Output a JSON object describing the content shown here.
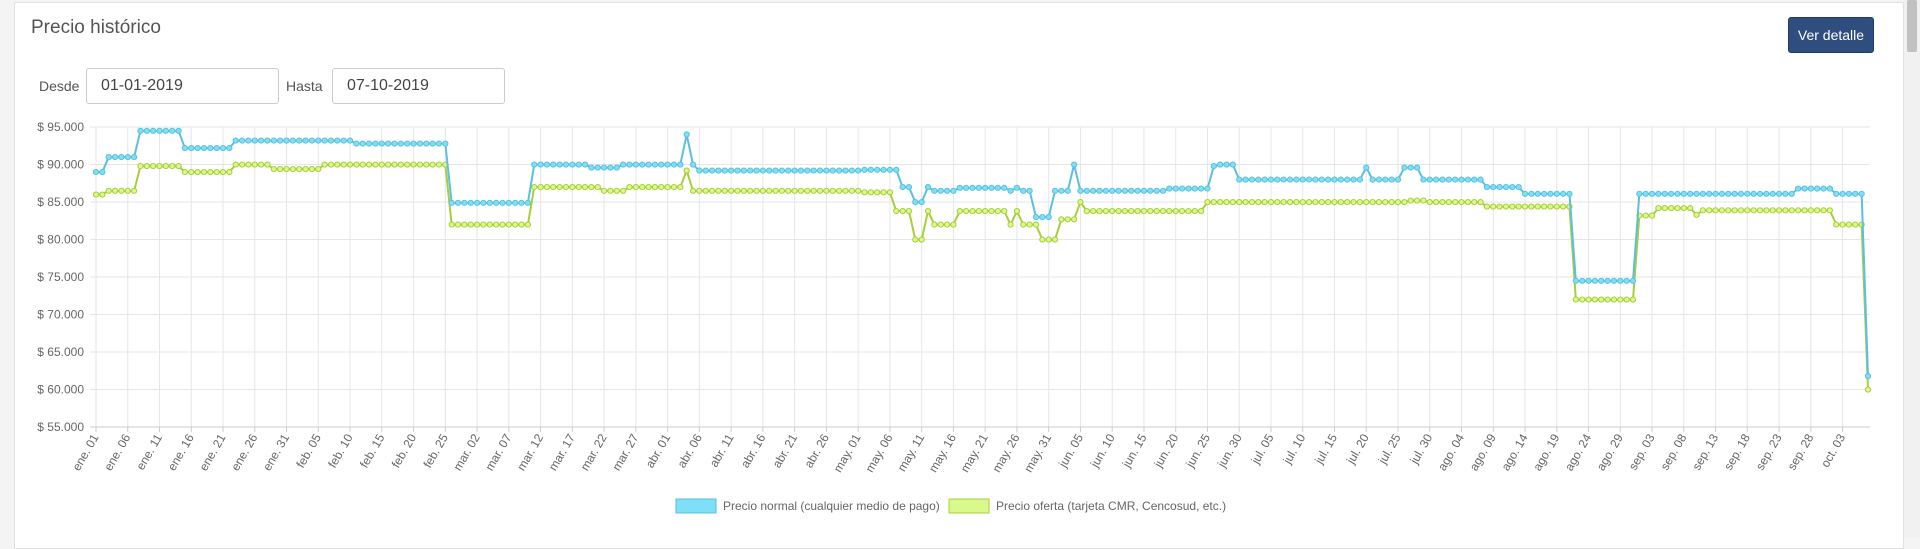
{
  "panel": {
    "title": "Precio histórico",
    "detail_button": "Ver detalle"
  },
  "filters": {
    "from_label": "Desde",
    "from_value": "01-01-2019",
    "to_label": "Hasta",
    "to_value": "07-10-2019"
  },
  "colors": {
    "normal_line": "#5bc0de",
    "normal_fill": "#7fdff7",
    "offer_line": "#a8cf3a",
    "offer_fill": "#d9f98c",
    "button": "#2f4d7e"
  },
  "chart_data": {
    "type": "line",
    "title": "",
    "xlabel": "",
    "ylabel": "",
    "ylim": [
      55000,
      95000
    ],
    "yticks": [
      "$ 55.000",
      "$ 60.000",
      "$ 65.000",
      "$ 70.000",
      "$ 75.000",
      "$ 80.000",
      "$ 85.000",
      "$ 90.000",
      "$ 95.000"
    ],
    "x_start": "2019-01-01",
    "x_end": "2019-10-07",
    "x_tick_labels": [
      "ene. 01",
      "ene. 06",
      "ene. 11",
      "ene. 16",
      "ene. 21",
      "ene. 26",
      "ene. 31",
      "feb. 05",
      "feb. 10",
      "feb. 15",
      "feb. 20",
      "feb. 25",
      "mar. 02",
      "mar. 07",
      "mar. 12",
      "mar. 17",
      "mar. 22",
      "mar. 27",
      "abr. 01",
      "abr. 06",
      "abr. 11",
      "abr. 16",
      "abr. 21",
      "abr. 26",
      "may. 01",
      "may. 06",
      "may. 11",
      "may. 16",
      "may. 21",
      "may. 26",
      "may. 31",
      "jun. 05",
      "jun. 10",
      "jun. 15",
      "jun. 20",
      "jun. 25",
      "jun. 30",
      "jul. 05",
      "jul. 10",
      "jul. 15",
      "jul. 20",
      "jul. 25",
      "jul. 30",
      "ago. 04",
      "ago. 09",
      "ago. 14",
      "ago. 19",
      "ago. 24",
      "ago. 29",
      "sep. 03",
      "sep. 08",
      "sep. 13",
      "sep. 18",
      "sep. 23",
      "sep. 28",
      "oct. 03"
    ],
    "legend_position": "bottom-center",
    "grid": true,
    "series": [
      {
        "name": "Precio normal (cualquier medio de pago)",
        "segments": [
          [
            "2019-01-01",
            88990
          ],
          [
            "2019-01-03",
            90990
          ],
          [
            "2019-01-08",
            94490
          ],
          [
            "2019-01-15",
            92190
          ],
          [
            "2019-01-23",
            93190
          ],
          [
            "2019-02-05",
            93190
          ],
          [
            "2019-02-11",
            92790
          ],
          [
            "2019-02-26",
            84890
          ],
          [
            "2019-03-11",
            89990
          ],
          [
            "2019-03-20",
            89590
          ],
          [
            "2019-03-25",
            89990
          ],
          [
            "2019-04-04",
            94000
          ],
          [
            "2019-04-05",
            89990
          ],
          [
            "2019-04-06",
            89190
          ],
          [
            "2019-05-02",
            89290
          ],
          [
            "2019-05-08",
            86990
          ],
          [
            "2019-05-10",
            84990
          ],
          [
            "2019-05-12",
            86990
          ],
          [
            "2019-05-13",
            86490
          ],
          [
            "2019-05-17",
            86890
          ],
          [
            "2019-05-25",
            86490
          ],
          [
            "2019-05-26",
            86890
          ],
          [
            "2019-05-27",
            86490
          ],
          [
            "2019-05-29",
            82990
          ],
          [
            "2019-06-01",
            86490
          ],
          [
            "2019-06-04",
            89990
          ],
          [
            "2019-06-05",
            86490
          ],
          [
            "2019-06-19",
            86790
          ],
          [
            "2019-06-26",
            89790
          ],
          [
            "2019-06-27",
            89990
          ],
          [
            "2019-06-30",
            87990
          ],
          [
            "2019-07-20",
            89590
          ],
          [
            "2019-07-21",
            87990
          ],
          [
            "2019-07-26",
            89590
          ],
          [
            "2019-07-29",
            87990
          ],
          [
            "2019-08-08",
            86990
          ],
          [
            "2019-08-14",
            86090
          ],
          [
            "2019-08-22",
            74490
          ],
          [
            "2019-09-01",
            86090
          ],
          [
            "2019-09-26",
            86790
          ],
          [
            "2019-10-02",
            86090
          ],
          [
            "2019-10-07",
            61790
          ]
        ]
      },
      {
        "name": "Precio oferta (tarjeta CMR, Cencosud, etc.)",
        "segments": [
          [
            "2019-01-01",
            85990
          ],
          [
            "2019-01-03",
            86490
          ],
          [
            "2019-01-08",
            89790
          ],
          [
            "2019-01-15",
            88990
          ],
          [
            "2019-01-23",
            89990
          ],
          [
            "2019-01-29",
            89390
          ],
          [
            "2019-02-06",
            89990
          ],
          [
            "2019-02-26",
            81990
          ],
          [
            "2019-03-11",
            86990
          ],
          [
            "2019-03-22",
            86490
          ],
          [
            "2019-03-26",
            86990
          ],
          [
            "2019-04-04",
            89190
          ],
          [
            "2019-04-05",
            86490
          ],
          [
            "2019-05-02",
            86290
          ],
          [
            "2019-05-07",
            83790
          ],
          [
            "2019-05-10",
            79990
          ],
          [
            "2019-05-12",
            83790
          ],
          [
            "2019-05-13",
            81990
          ],
          [
            "2019-05-17",
            83790
          ],
          [
            "2019-05-25",
            81990
          ],
          [
            "2019-05-26",
            83790
          ],
          [
            "2019-05-27",
            81990
          ],
          [
            "2019-05-30",
            79990
          ],
          [
            "2019-06-02",
            82690
          ],
          [
            "2019-06-05",
            84990
          ],
          [
            "2019-06-06",
            83790
          ],
          [
            "2019-06-25",
            84990
          ],
          [
            "2019-07-27",
            85190
          ],
          [
            "2019-07-30",
            84990
          ],
          [
            "2019-08-08",
            84390
          ],
          [
            "2019-08-22",
            71990
          ],
          [
            "2019-09-01",
            83190
          ],
          [
            "2019-09-04",
            84190
          ],
          [
            "2019-09-10",
            83290
          ],
          [
            "2019-09-11",
            83890
          ],
          [
            "2019-10-02",
            81990
          ],
          [
            "2019-10-07",
            59990
          ]
        ]
      }
    ]
  }
}
